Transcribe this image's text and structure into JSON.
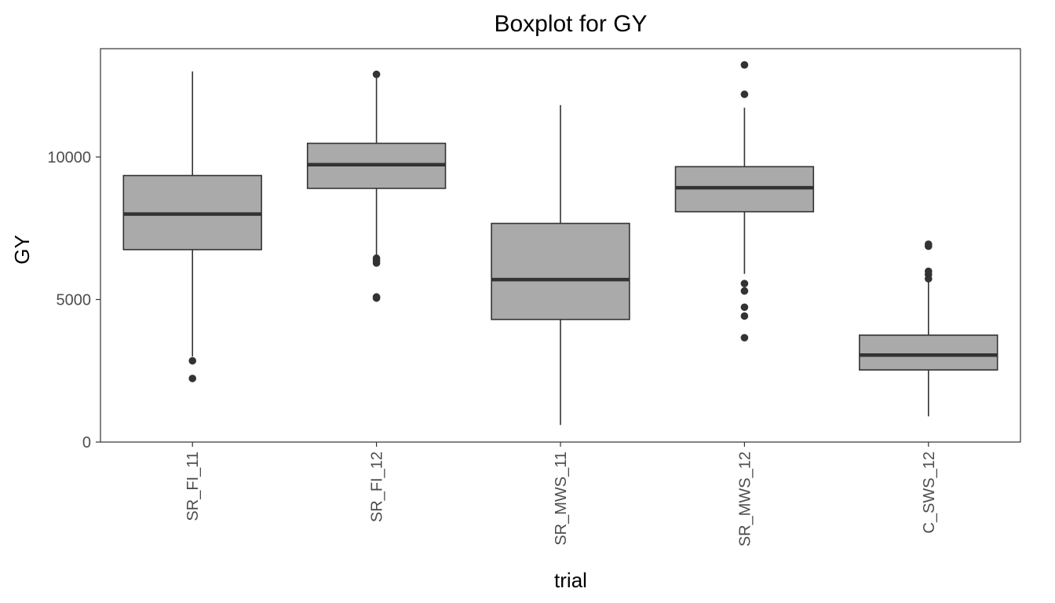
{
  "chart_data": {
    "type": "boxplot",
    "title": "Boxplot for GY",
    "xlabel": "trial",
    "ylabel": "GY",
    "ylim": [
      0,
      13800
    ],
    "yticks": [
      0,
      5000,
      10000
    ],
    "ytick_labels": [
      "0",
      "5000",
      "10000"
    ],
    "grid": false,
    "legend": "none",
    "colors": {
      "box_fill": "#aaaaaa",
      "box_stroke": "#333333",
      "median": "#333333",
      "outlier": "#333333"
    },
    "categories": [
      "SR_FI_11",
      "SR_FI_12",
      "SR_MWS_11",
      "SR_MWS_12",
      "C_SWS_12"
    ],
    "boxes": [
      {
        "category": "SR_FI_11",
        "whisker_low": 3000,
        "q1": 6750,
        "median": 8000,
        "q3": 9350,
        "whisker_high": 13000,
        "outliers": [
          2850,
          2230
        ]
      },
      {
        "category": "SR_FI_12",
        "whisker_low": 6500,
        "q1": 8900,
        "median": 9730,
        "q3": 10480,
        "whisker_high": 12870,
        "outliers": [
          12900,
          6450,
          6360,
          6280,
          5090,
          5050
        ]
      },
      {
        "category": "SR_MWS_11",
        "whisker_low": 600,
        "q1": 4300,
        "median": 5700,
        "q3": 7670,
        "whisker_high": 11820,
        "outliers": []
      },
      {
        "category": "SR_MWS_12",
        "whisker_low": 5900,
        "q1": 8080,
        "median": 8920,
        "q3": 9660,
        "whisker_high": 11730,
        "outliers": [
          13230,
          12200,
          5560,
          5300,
          4730,
          4420,
          3660
        ]
      },
      {
        "category": "C_SWS_12",
        "whisker_low": 900,
        "q1": 2530,
        "median": 3050,
        "q3": 3750,
        "whisker_high": 5700,
        "outliers": [
          6940,
          6870,
          5990,
          5880,
          5730
        ]
      }
    ]
  }
}
